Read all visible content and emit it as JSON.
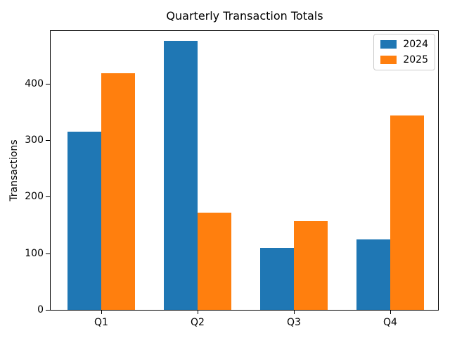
{
  "chart_data": {
    "type": "bar",
    "title": "Quarterly Transaction Totals",
    "xlabel": "",
    "ylabel": "Transactions",
    "categories": [
      "Q1",
      "Q2",
      "Q3",
      "Q4"
    ],
    "series": [
      {
        "name": "2024",
        "color": "#1f77b4",
        "values": [
          315,
          475,
          110,
          125
        ]
      },
      {
        "name": "2025",
        "color": "#ff7f0e",
        "values": [
          418,
          172,
          157,
          344
        ]
      }
    ],
    "ylim": [
      0,
      493
    ],
    "yticks": [
      0,
      100,
      200,
      300,
      400
    ],
    "grid": false,
    "legend_position": "upper right",
    "layout_hints": {
      "bar_orientation": "vertical",
      "grouped": true,
      "background": "#ffffff",
      "spine_color": "#000000"
    }
  }
}
